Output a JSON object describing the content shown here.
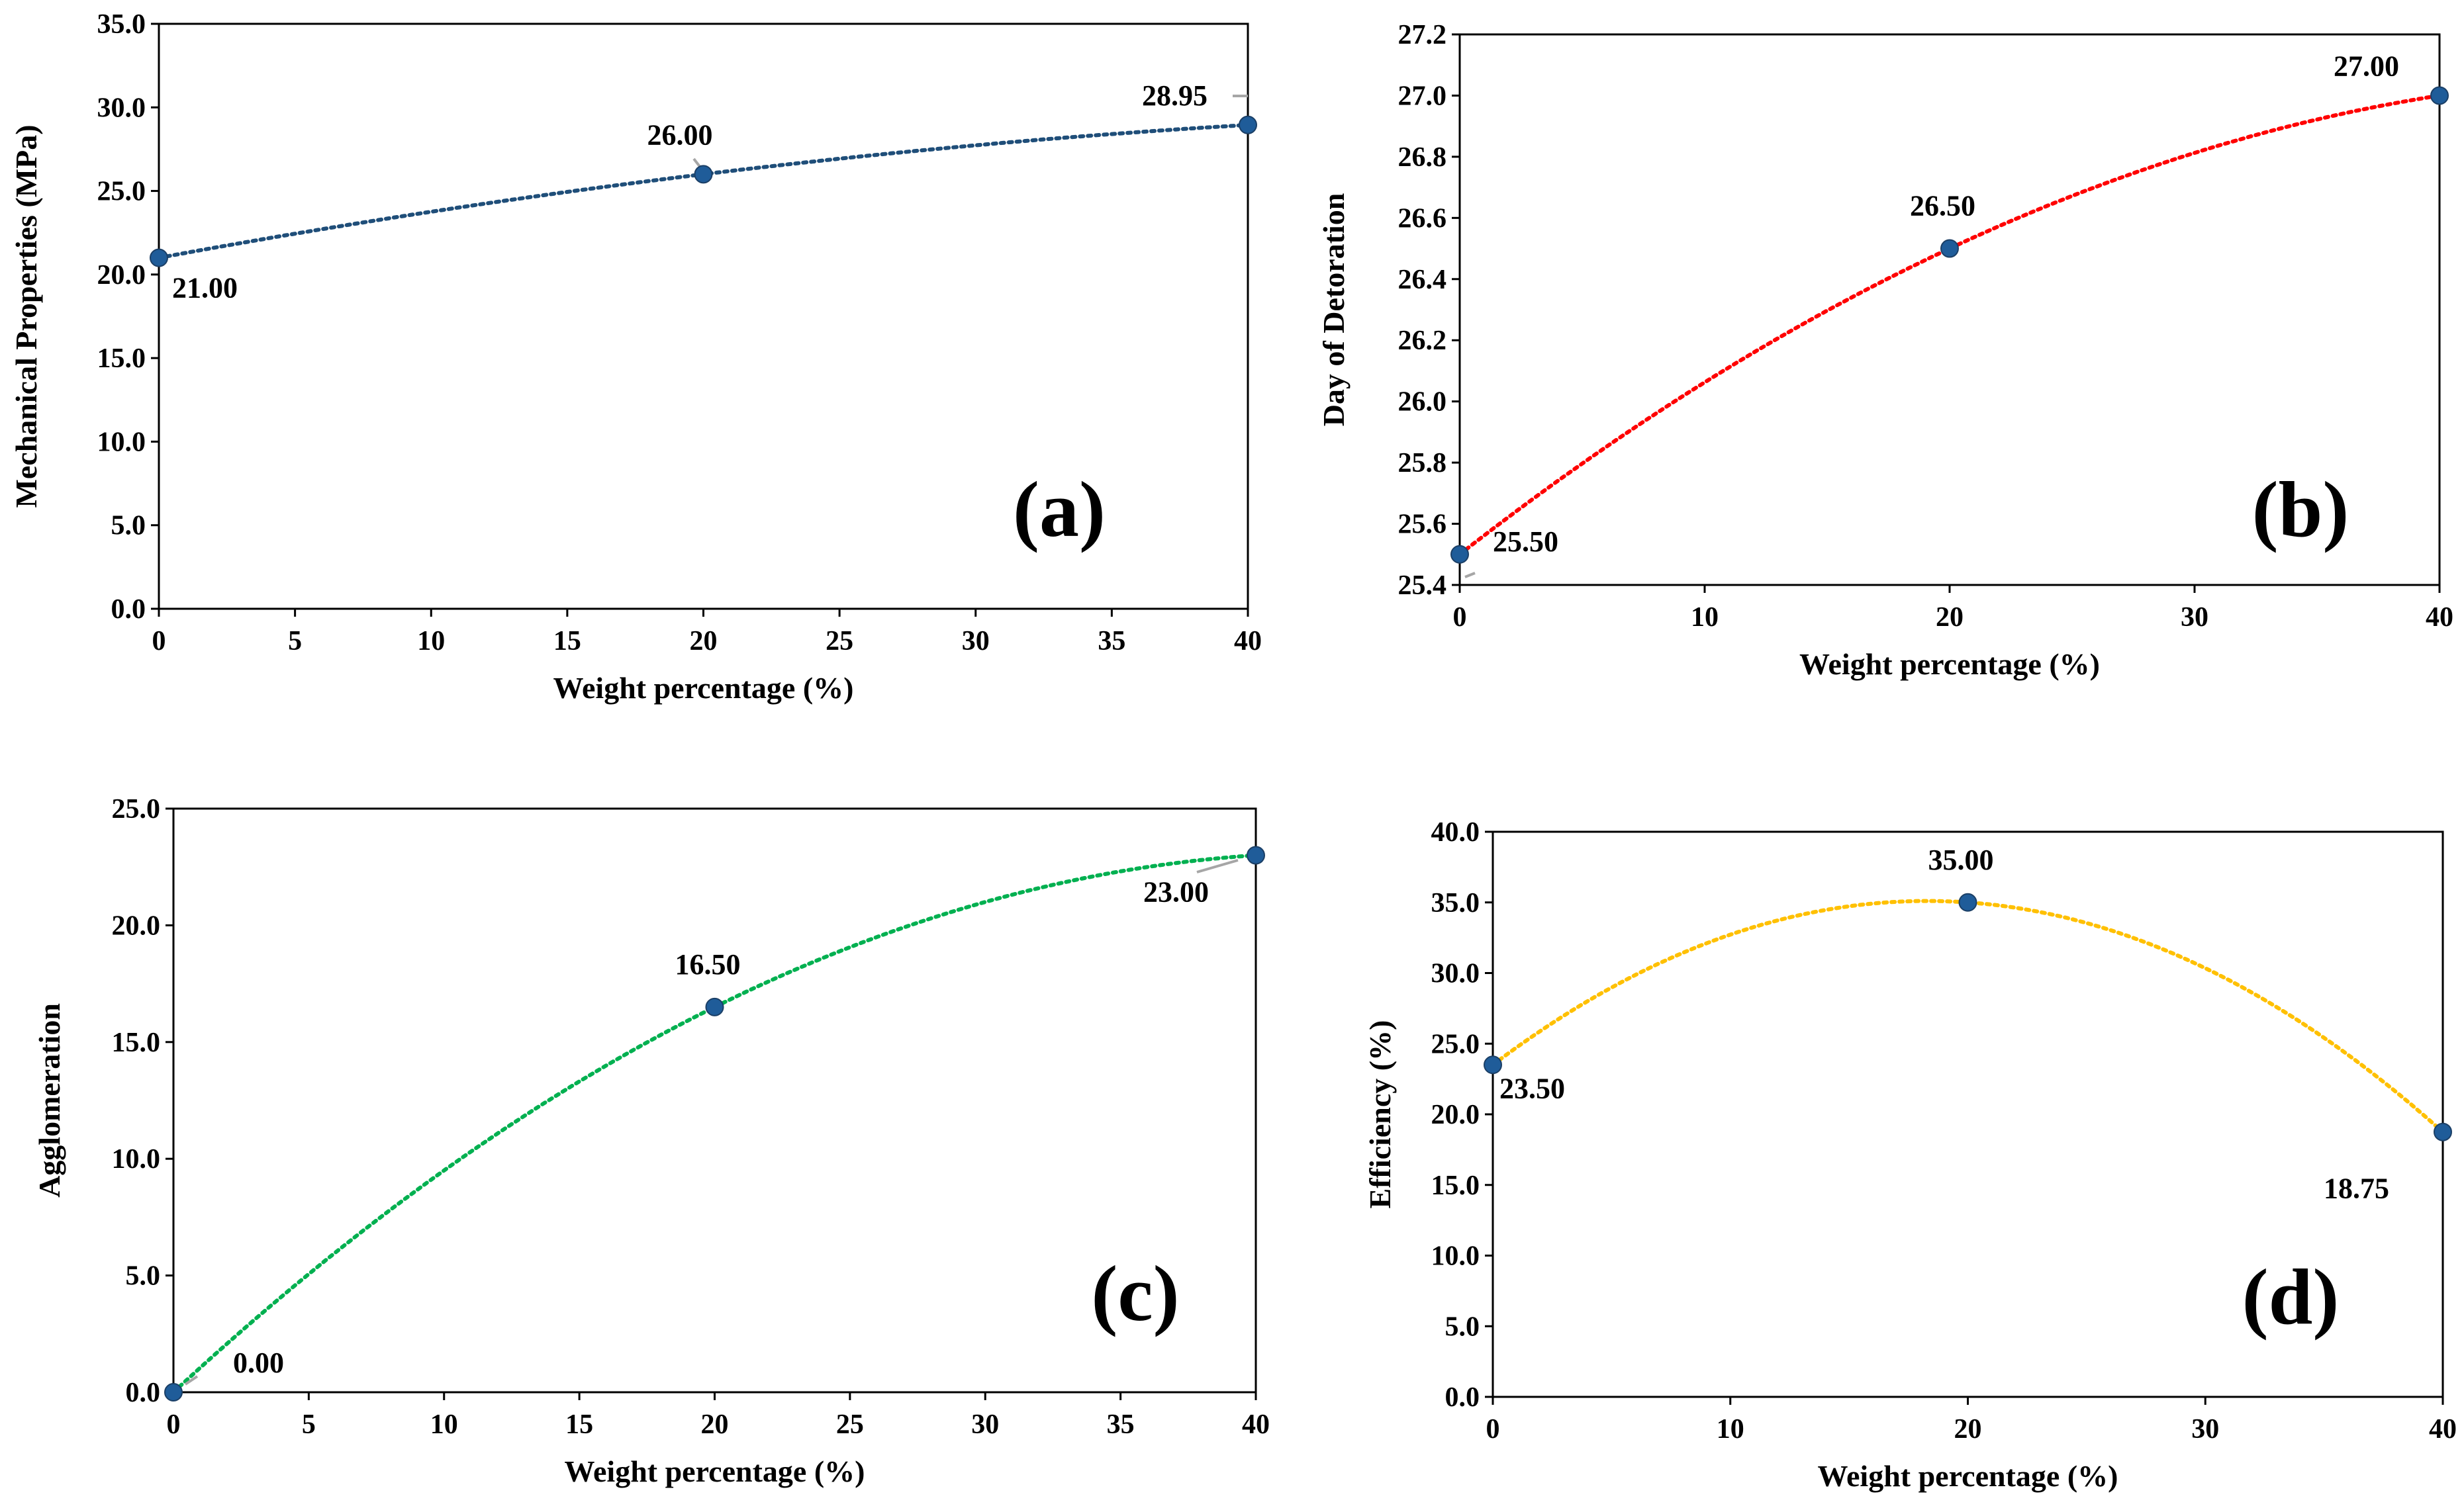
{
  "chart_data": [
    {
      "type": "scatter",
      "panel_label": "(a)",
      "xlabel": "Weight percentage (%)",
      "ylabel": "Mechanical Properties (MPa)",
      "x": [
        0,
        20,
        40
      ],
      "y": [
        21.0,
        26.0,
        28.95
      ],
      "data_labels": [
        "21.00",
        "26.00",
        "28.95"
      ],
      "xlim": [
        0,
        40
      ],
      "ylim": [
        0,
        35
      ],
      "x_ticks": [
        0,
        5,
        10,
        15,
        20,
        25,
        30,
        35,
        40
      ],
      "x_tick_labels": [
        "0",
        "5",
        "10",
        "15",
        "20",
        "25",
        "30",
        "35",
        "40"
      ],
      "y_ticks": [
        0,
        5,
        10,
        15,
        20,
        25,
        30,
        35
      ],
      "y_tick_labels": [
        "0.0",
        "5.0",
        "10.0",
        "15.0",
        "20.0",
        "25.0",
        "30.0",
        "35.0"
      ],
      "trendline": "polynomial-2",
      "trend_color": "#1f4e79",
      "marker_color": "#1f5c99",
      "grid": false
    },
    {
      "type": "scatter",
      "panel_label": "(b)",
      "xlabel": "Weight percentage (%)",
      "ylabel": "Day of Detoration",
      "x": [
        0,
        20,
        40
      ],
      "y": [
        25.5,
        26.5,
        27.0
      ],
      "data_labels": [
        "25.50",
        "26.50",
        "27.00"
      ],
      "xlim": [
        0,
        40
      ],
      "ylim": [
        25.4,
        27.2
      ],
      "x_ticks": [
        0,
        10,
        20,
        30,
        40
      ],
      "x_tick_labels": [
        "0",
        "10",
        "20",
        "30",
        "40"
      ],
      "y_ticks": [
        25.4,
        25.6,
        25.8,
        26.0,
        26.2,
        26.4,
        26.6,
        26.8,
        27.0,
        27.2
      ],
      "y_tick_labels": [
        "25.4",
        "25.6",
        "25.8",
        "26.0",
        "26.2",
        "26.4",
        "26.6",
        "26.8",
        "27.0",
        "27.2"
      ],
      "trendline": "polynomial-2",
      "trend_color": "#ff0000",
      "marker_color": "#1f5c99",
      "grid": false
    },
    {
      "type": "scatter",
      "panel_label": "(c)",
      "xlabel": "Weight percentage (%)",
      "ylabel": "Agglomeration",
      "x": [
        0,
        20,
        40
      ],
      "y": [
        0.0,
        16.5,
        23.0
      ],
      "data_labels": [
        "0.00",
        "16.50",
        "23.00"
      ],
      "xlim": [
        0,
        40
      ],
      "ylim": [
        0,
        25
      ],
      "x_ticks": [
        0,
        5,
        10,
        15,
        20,
        25,
        30,
        35,
        40
      ],
      "x_tick_labels": [
        "0",
        "5",
        "10",
        "15",
        "20",
        "25",
        "30",
        "35",
        "40"
      ],
      "y_ticks": [
        0,
        5,
        10,
        15,
        20,
        25
      ],
      "y_tick_labels": [
        "0.0",
        "5.0",
        "10.0",
        "15.0",
        "20.0",
        "25.0"
      ],
      "trendline": "polynomial-2",
      "trend_color": "#00b050",
      "marker_color": "#1f5c99",
      "grid": false
    },
    {
      "type": "scatter",
      "panel_label": "(d)",
      "xlabel": "Weight percentage (%)",
      "ylabel": "Efficiency  (%)",
      "x": [
        0,
        20,
        40
      ],
      "y": [
        23.5,
        35.0,
        18.75
      ],
      "data_labels": [
        "23.50",
        "35.00",
        "18.75"
      ],
      "xlim": [
        0,
        40
      ],
      "ylim": [
        0,
        40
      ],
      "x_ticks": [
        0,
        10,
        20,
        30,
        40
      ],
      "x_tick_labels": [
        "0",
        "10",
        "20",
        "30",
        "40"
      ],
      "y_ticks": [
        0,
        5,
        10,
        15,
        20,
        25,
        30,
        35,
        40
      ],
      "y_tick_labels": [
        "0.0",
        "5.0",
        "10.0",
        "15.0",
        "20.0",
        "25.0",
        "30.0",
        "35.0",
        "40.0"
      ],
      "trendline": "polynomial-2",
      "trend_color": "#ffc000",
      "marker_color": "#1f5c99",
      "grid": false
    }
  ]
}
